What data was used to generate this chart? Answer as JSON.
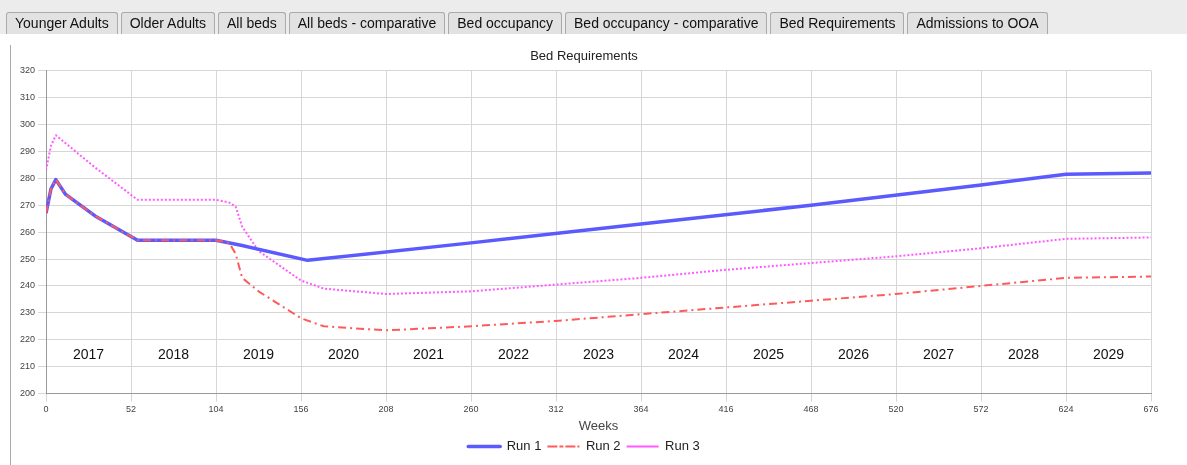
{
  "chart_data": {
    "type": "line",
    "title": "Bed Requirements",
    "xlabel": "Weeks",
    "xlim": [
      0,
      676
    ],
    "xticks": [
      0,
      52,
      104,
      156,
      208,
      260,
      312,
      364,
      416,
      468,
      520,
      572,
      624,
      676
    ],
    "ylim": [
      200,
      320
    ],
    "yticks": [
      200,
      210,
      220,
      230,
      240,
      250,
      260,
      270,
      280,
      290,
      300,
      310,
      320
    ],
    "grid": true,
    "legend": "bottom",
    "marker": "none",
    "series": [
      {
        "name": "Run 1",
        "color": "#5a5aff",
        "line_style": "solid",
        "x": [
          0,
          3,
          6,
          12,
          30,
          56,
          104,
          120,
          160,
          260,
          364,
          468,
          572,
          624,
          676
        ],
        "values": [
          267,
          276,
          279.5,
          274,
          266,
          257,
          257,
          255,
          249.5,
          256,
          263,
          270,
          277.5,
          281.5,
          282
        ]
      },
      {
        "name": "Run 2",
        "color": "#ff5a5a",
        "line_style": "dashed",
        "x": [
          0,
          3,
          6,
          12,
          30,
          56,
          104,
          112,
          116,
          120,
          130,
          156,
          170,
          208,
          260,
          312,
          364,
          416,
          468,
          520,
          572,
          624,
          676
        ],
        "values": [
          267,
          276,
          279.5,
          274,
          266,
          257,
          257,
          256,
          252,
          243,
          238,
          228,
          225,
          223.5,
          225,
          227,
          229.5,
          232,
          234.5,
          237,
          240,
          243,
          243.5
        ]
      },
      {
        "name": "Run 3",
        "color": "#ff5aff",
        "line_style": "dotted",
        "x": [
          0,
          3,
          6,
          12,
          30,
          56,
          104,
          112,
          116,
          120,
          130,
          156,
          170,
          208,
          260,
          312,
          364,
          416,
          468,
          520,
          572,
          624,
          676
        ],
        "values": [
          283,
          292,
          296,
          293,
          284,
          272,
          272,
          271,
          269.5,
          262,
          253,
          242,
          239,
          237,
          238,
          240.5,
          243,
          246,
          248.5,
          251,
          254,
          257.5,
          258
        ]
      }
    ],
    "x2lim": [
      2016.5,
      2029.5
    ],
    "x2ticks": [
      2017,
      2018,
      2019,
      2020,
      2021,
      2022,
      2023,
      2024,
      2025,
      2026,
      2027,
      2028,
      2029
    ],
    "annotations": [
      "Younger Adults",
      "Older Adults",
      "All beds",
      "All beds - comparative",
      "Bed occupancy",
      "Bed occupancy - comparative",
      "Bed Requirements",
      "Admissions to OOA"
    ]
  }
}
